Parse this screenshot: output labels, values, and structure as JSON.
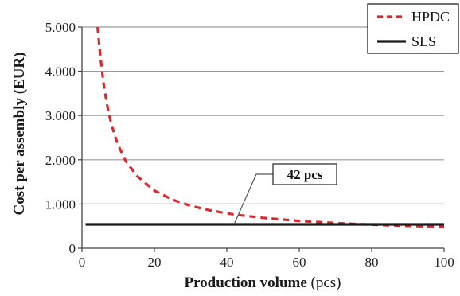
{
  "chart_data": {
    "type": "line",
    "xlabel": "Production volume",
    "xunit": " (pcs)",
    "ylabel": "Cost per assembly (EUR)",
    "xlim": [
      0,
      100
    ],
    "ylim": [
      0,
      5000
    ],
    "x_ticks": [
      0,
      20,
      40,
      60,
      80,
      100
    ],
    "x_tick_labels": [
      "0",
      "20",
      "40",
      "60",
      "80",
      "100"
    ],
    "y_ticks": [
      0,
      1000,
      2000,
      3000,
      4000,
      5000
    ],
    "y_tick_labels": [
      "0",
      "1.000",
      "2.000",
      "3.000",
      "4.000",
      "5.000"
    ],
    "grid": "horizontal",
    "legend_position": "top-right",
    "series": [
      {
        "name": "HPDC",
        "style": "dashed",
        "color": "#e0262b",
        "x": [
          4.3,
          5,
          6,
          7,
          8,
          9,
          10,
          12,
          15,
          20,
          25,
          30,
          35,
          40,
          42,
          45,
          50,
          60,
          70,
          80,
          90,
          100
        ],
        "y": [
          5000,
          4385,
          3700,
          3212,
          2845,
          2560,
          2330,
          1988,
          1645,
          1303,
          1098,
          961,
          863,
          790,
          765,
          733,
          687,
          619,
          570,
          533,
          505,
          482
        ]
      },
      {
        "name": "SLS",
        "style": "solid",
        "color": "#1a1a1a",
        "x": [
          1,
          100
        ],
        "y": [
          540,
          540
        ]
      }
    ],
    "annotations": [
      {
        "text": "42 pcs",
        "x": 42,
        "y": 540
      }
    ]
  }
}
